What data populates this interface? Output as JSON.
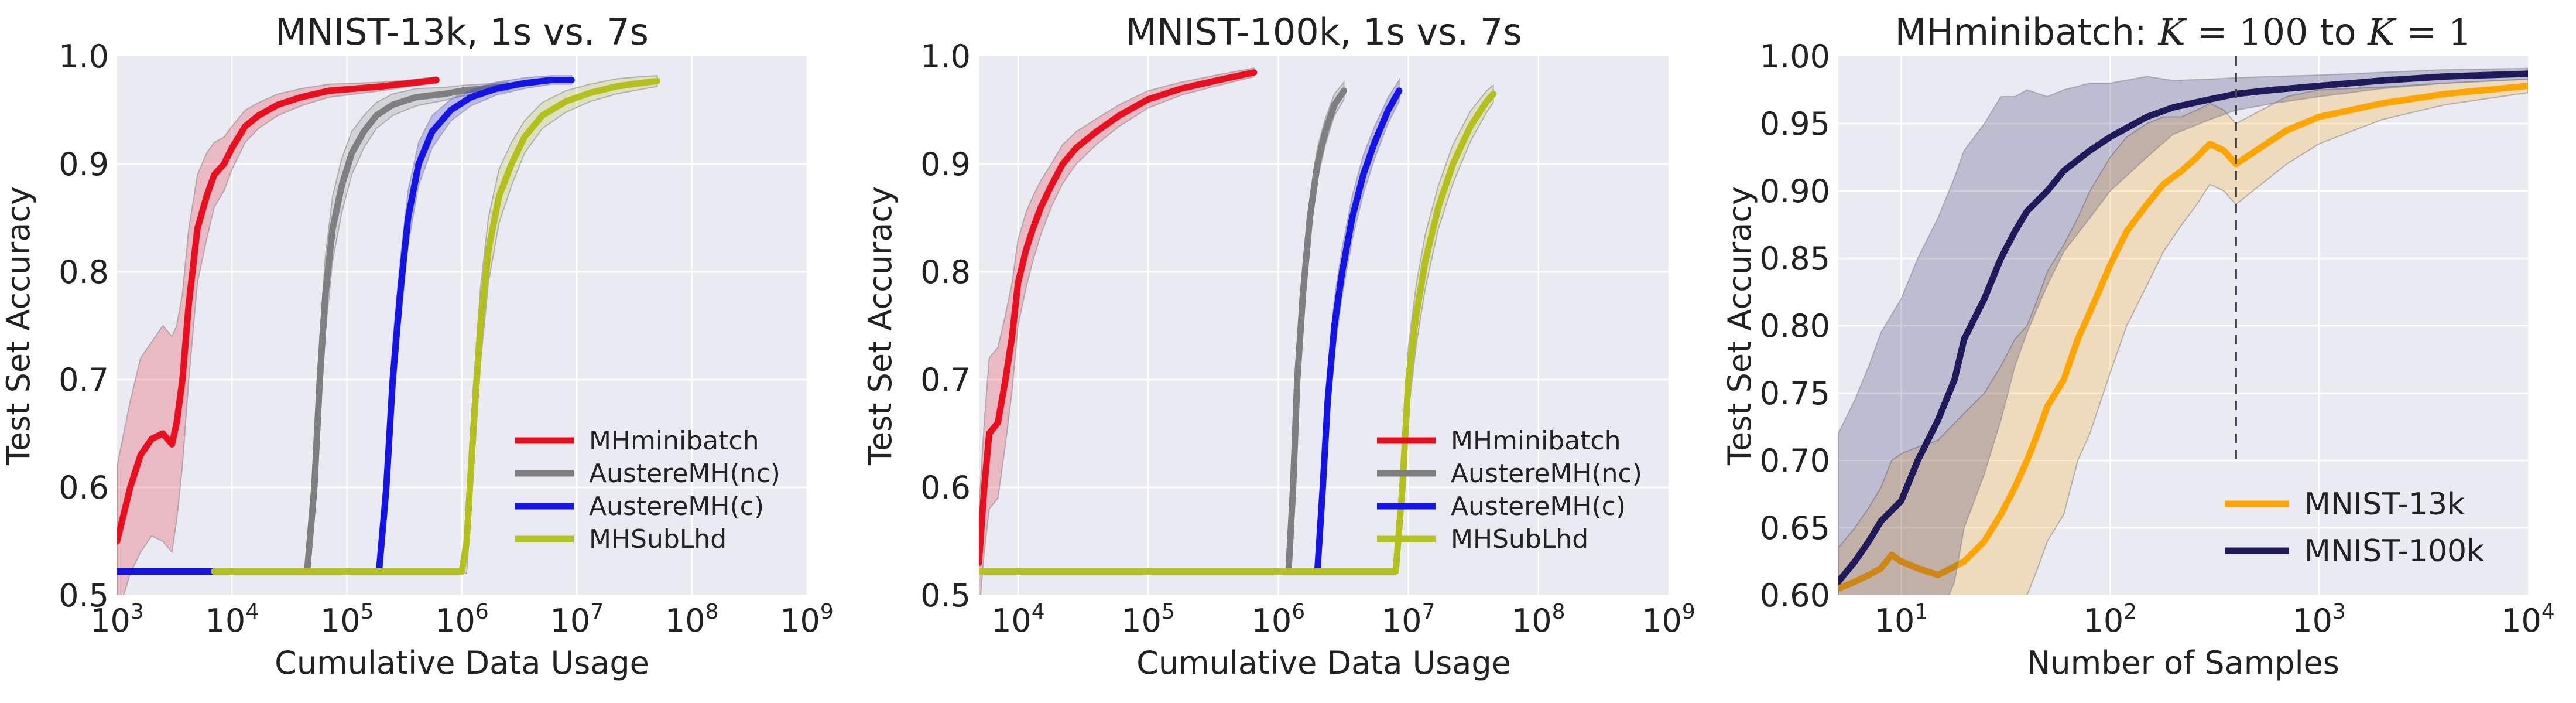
{
  "colors": {
    "MHminibatch": "#e8101e",
    "AustereMH(nc)": "#7f7f7f",
    "AustereMH(c)": "#1414e6",
    "MHSubLhd": "#b4c11c",
    "MNIST-13k": "#ffa500",
    "MNIST-100k": "#1f1a5a"
  },
  "chart_data": [
    {
      "type": "line",
      "title": "MNIST-13k, 1s vs. 7s",
      "xlabel": "Cumulative Data Usage",
      "ylabel": "Test Set Accuracy",
      "xscale": "log",
      "xlim": [
        1000,
        1000000000
      ],
      "ylim": [
        0.5,
        1.0
      ],
      "xticks": [
        1000,
        10000,
        100000,
        1000000,
        10000000,
        100000000,
        1000000000
      ],
      "xtick_labels": [
        {
          "base": "10",
          "exp": "3"
        },
        {
          "base": "10",
          "exp": "4"
        },
        {
          "base": "10",
          "exp": "5"
        },
        {
          "base": "10",
          "exp": "6"
        },
        {
          "base": "10",
          "exp": "7"
        },
        {
          "base": "10",
          "exp": "8"
        },
        {
          "base": "10",
          "exp": "9"
        }
      ],
      "yticks": [
        0.5,
        0.6,
        0.7,
        0.8,
        0.9,
        1.0
      ],
      "ytick_labels": [
        "0.5",
        "0.6",
        "0.7",
        "0.8",
        "0.9",
        "1.0"
      ],
      "grid": true,
      "legend": "lower right",
      "series": [
        {
          "name": "MHminibatch",
          "x": [
            1000,
            1300,
            1600,
            2000,
            2500,
            3000,
            3300,
            3700,
            4200,
            5000,
            6000,
            7000,
            8500,
            10000,
            13000,
            17000,
            25000,
            40000,
            70000,
            120000,
            200000,
            350000,
            600000
          ],
          "y": [
            0.55,
            0.6,
            0.63,
            0.645,
            0.65,
            0.64,
            0.66,
            0.7,
            0.77,
            0.84,
            0.87,
            0.89,
            0.9,
            0.915,
            0.935,
            0.945,
            0.955,
            0.962,
            0.968,
            0.97,
            0.972,
            0.975,
            0.978
          ],
          "band": [
            0.07,
            0.08,
            0.09,
            0.09,
            0.1,
            0.1,
            0.09,
            0.08,
            0.07,
            0.05,
            0.04,
            0.03,
            0.025,
            0.02,
            0.015,
            0.012,
            0.01,
            0.008,
            0.006,
            0.005,
            0.004,
            0.003,
            0.003
          ]
        },
        {
          "name": "AustereMH(nc)",
          "x": [
            5000,
            30000,
            45000,
            52000,
            58000,
            65000,
            75000,
            90000,
            110000,
            140000,
            180000,
            250000,
            400000,
            700000,
            1000000,
            1500000,
            2500000
          ],
          "y": [
            0.522,
            0.522,
            0.522,
            0.6,
            0.7,
            0.78,
            0.84,
            0.88,
            0.91,
            0.93,
            0.945,
            0.955,
            0.962,
            0.965,
            0.968,
            0.97,
            0.972
          ],
          "band": [
            0.0,
            0.0,
            0.0,
            0.03,
            0.04,
            0.035,
            0.03,
            0.025,
            0.02,
            0.015,
            0.012,
            0.01,
            0.008,
            0.006,
            0.005,
            0.004,
            0.004
          ]
        },
        {
          "name": "AustereMH(c)",
          "x": [
            1000,
            7000,
            50000,
            150000,
            190000,
            220000,
            250000,
            290000,
            340000,
            420000,
            550000,
            800000,
            1200000,
            2000000,
            3500000,
            6000000,
            9000000
          ],
          "y": [
            0.522,
            0.522,
            0.522,
            0.522,
            0.522,
            0.6,
            0.7,
            0.78,
            0.85,
            0.9,
            0.93,
            0.95,
            0.962,
            0.97,
            0.975,
            0.978,
            0.978
          ],
          "band": [
            0.0,
            0.0,
            0.0,
            0.0,
            0.0,
            0.03,
            0.035,
            0.03,
            0.025,
            0.02,
            0.015,
            0.01,
            0.008,
            0.006,
            0.005,
            0.004,
            0.004
          ]
        },
        {
          "name": "MHSubLhd",
          "x": [
            7000,
            100000,
            1000000,
            1100000,
            1250000,
            1450000,
            1700000,
            2100000,
            2700000,
            3500000,
            5000000,
            8000000,
            13000000,
            22000000,
            35000000,
            50000000
          ],
          "y": [
            0.522,
            0.522,
            0.522,
            0.55,
            0.65,
            0.75,
            0.82,
            0.87,
            0.9,
            0.925,
            0.945,
            0.958,
            0.966,
            0.972,
            0.975,
            0.977
          ],
          "band": [
            0.0,
            0.0,
            0.0,
            0.03,
            0.04,
            0.035,
            0.03,
            0.025,
            0.02,
            0.015,
            0.012,
            0.01,
            0.008,
            0.007,
            0.006,
            0.005
          ]
        }
      ]
    },
    {
      "type": "line",
      "title": "MNIST-100k, 1s vs. 7s",
      "xlabel": "Cumulative Data Usage",
      "ylabel": "Test Set Accuracy",
      "xscale": "log",
      "xlim": [
        5000,
        1000000000
      ],
      "ylim": [
        0.5,
        1.0
      ],
      "xticks": [
        10000,
        100000,
        1000000,
        10000000,
        100000000,
        1000000000
      ],
      "xtick_labels": [
        {
          "base": "10",
          "exp": "4"
        },
        {
          "base": "10",
          "exp": "5"
        },
        {
          "base": "10",
          "exp": "6"
        },
        {
          "base": "10",
          "exp": "7"
        },
        {
          "base": "10",
          "exp": "8"
        },
        {
          "base": "10",
          "exp": "9"
        }
      ],
      "yticks": [
        0.5,
        0.6,
        0.7,
        0.8,
        0.9,
        1.0
      ],
      "ytick_labels": [
        "0.5",
        "0.6",
        "0.7",
        "0.8",
        "0.9",
        "1.0"
      ],
      "grid": true,
      "legend": "lower right",
      "series": [
        {
          "name": "MHminibatch",
          "x": [
            5000,
            5500,
            6000,
            7000,
            8000,
            9000,
            10000,
            11500,
            13000,
            15000,
            18000,
            22000,
            28000,
            40000,
            60000,
            100000,
            180000,
            350000,
            650000
          ],
          "y": [
            0.53,
            0.6,
            0.65,
            0.66,
            0.7,
            0.74,
            0.79,
            0.82,
            0.84,
            0.86,
            0.88,
            0.9,
            0.915,
            0.93,
            0.945,
            0.96,
            0.97,
            0.978,
            0.985
          ],
          "band": [
            0.05,
            0.06,
            0.07,
            0.07,
            0.06,
            0.05,
            0.04,
            0.035,
            0.03,
            0.025,
            0.02,
            0.018,
            0.015,
            0.012,
            0.01,
            0.008,
            0.006,
            0.005,
            0.004
          ]
        },
        {
          "name": "AustereMH(nc)",
          "x": [
            5000,
            100000,
            1200000,
            1300000,
            1400000,
            1550000,
            1750000,
            2000000,
            2300000,
            2700000,
            3200000
          ],
          "y": [
            0.522,
            0.522,
            0.522,
            0.6,
            0.7,
            0.78,
            0.85,
            0.9,
            0.93,
            0.955,
            0.968
          ],
          "band": [
            0.0,
            0.0,
            0.0,
            0.02,
            0.025,
            0.02,
            0.018,
            0.015,
            0.012,
            0.01,
            0.008
          ]
        },
        {
          "name": "AustereMH(c)",
          "x": [
            5000,
            100000,
            2000000,
            2200000,
            2400000,
            2700000,
            3100000,
            3700000,
            4500000,
            5500000,
            7000000,
            8500000
          ],
          "y": [
            0.522,
            0.522,
            0.522,
            0.6,
            0.68,
            0.75,
            0.8,
            0.85,
            0.89,
            0.92,
            0.95,
            0.968
          ],
          "band": [
            0.0,
            0.0,
            0.0,
            0.02,
            0.025,
            0.025,
            0.022,
            0.02,
            0.018,
            0.015,
            0.012,
            0.01
          ]
        },
        {
          "name": "MHSubLhd",
          "x": [
            5000,
            100000,
            1000000,
            8000000,
            9000000,
            10000000,
            11500000,
            13500000,
            17000000,
            22000000,
            30000000,
            40000000,
            45000000
          ],
          "y": [
            0.522,
            0.522,
            0.522,
            0.522,
            0.6,
            0.7,
            0.76,
            0.81,
            0.86,
            0.9,
            0.935,
            0.958,
            0.965
          ],
          "band": [
            0.0,
            0.0,
            0.0,
            0.0,
            0.02,
            0.03,
            0.028,
            0.025,
            0.02,
            0.018,
            0.014,
            0.01,
            0.008
          ]
        }
      ]
    },
    {
      "type": "line",
      "title_parts": [
        {
          "text": "MHminibatch: ",
          "style": "plain"
        },
        {
          "text": "K",
          "style": "math"
        },
        {
          "text": " = 100",
          "style": "mrm"
        },
        {
          "text": " to ",
          "style": "plain"
        },
        {
          "text": "K",
          "style": "math"
        },
        {
          "text": " = 1",
          "style": "mrm"
        }
      ],
      "xlabel": "Number of Samples",
      "ylabel": "Test Set Accuracy",
      "xscale": "log",
      "xlim": [
        5,
        10000
      ],
      "ylim": [
        0.6,
        1.0
      ],
      "xticks": [
        10,
        100,
        1000,
        10000
      ],
      "xtick_labels": [
        {
          "base": "10",
          "exp": "1"
        },
        {
          "base": "10",
          "exp": "2"
        },
        {
          "base": "10",
          "exp": "3"
        },
        {
          "base": "10",
          "exp": "4"
        }
      ],
      "yticks": [
        0.6,
        0.65,
        0.7,
        0.75,
        0.8,
        0.85,
        0.9,
        0.95,
        1.0
      ],
      "ytick_labels": [
        "0.60",
        "0.65",
        "0.70",
        "0.75",
        "0.80",
        "0.85",
        "0.90",
        "0.95",
        "1.00"
      ],
      "grid": true,
      "legend": "lower right",
      "vline": {
        "x": 400,
        "y_from": 0.7,
        "y_to": 1.0,
        "style": "dashed"
      },
      "series": [
        {
          "name": "MNIST-13k",
          "x": [
            5,
            6,
            7,
            8,
            9,
            10,
            12,
            15,
            20,
            25,
            30,
            35,
            40,
            45,
            50,
            60,
            70,
            80,
            100,
            120,
            150,
            180,
            220,
            260,
            300,
            350,
            400,
            500,
            700,
            1000,
            2000,
            4000,
            10000
          ],
          "y": [
            0.605,
            0.61,
            0.615,
            0.62,
            0.63,
            0.625,
            0.62,
            0.615,
            0.625,
            0.64,
            0.66,
            0.68,
            0.7,
            0.72,
            0.74,
            0.76,
            0.79,
            0.81,
            0.845,
            0.87,
            0.89,
            0.905,
            0.915,
            0.925,
            0.935,
            0.93,
            0.92,
            0.93,
            0.945,
            0.955,
            0.965,
            0.972,
            0.978
          ],
          "band": [
            0.03,
            0.04,
            0.05,
            0.06,
            0.07,
            0.08,
            0.09,
            0.1,
            0.11,
            0.11,
            0.11,
            0.11,
            0.1,
            0.1,
            0.1,
            0.1,
            0.09,
            0.09,
            0.08,
            0.07,
            0.06,
            0.05,
            0.04,
            0.035,
            0.03,
            0.03,
            0.03,
            0.028,
            0.025,
            0.02,
            0.012,
            0.008,
            0.005
          ]
        },
        {
          "name": "MNIST-100k",
          "x": [
            5,
            6,
            7,
            8,
            10,
            12,
            15,
            18,
            20,
            25,
            30,
            35,
            40,
            50,
            60,
            80,
            100,
            150,
            200,
            300,
            400,
            600,
            1000,
            2000,
            4000,
            10000
          ],
          "y": [
            0.61,
            0.625,
            0.64,
            0.655,
            0.67,
            0.7,
            0.73,
            0.76,
            0.79,
            0.82,
            0.85,
            0.87,
            0.885,
            0.9,
            0.915,
            0.93,
            0.94,
            0.955,
            0.962,
            0.968,
            0.972,
            0.975,
            0.978,
            0.982,
            0.985,
            0.987
          ],
          "band": [
            0.11,
            0.12,
            0.13,
            0.14,
            0.15,
            0.15,
            0.15,
            0.15,
            0.14,
            0.13,
            0.12,
            0.1,
            0.09,
            0.07,
            0.06,
            0.05,
            0.04,
            0.03,
            0.02,
            0.015,
            0.012,
            0.01,
            0.008,
            0.006,
            0.005,
            0.004
          ]
        }
      ]
    }
  ]
}
